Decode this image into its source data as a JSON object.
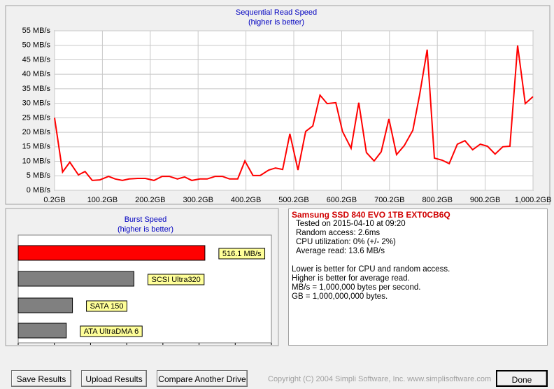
{
  "chart_data": [
    {
      "type": "line",
      "title": "Sequential Read Speed",
      "subtitle": "(higher is better)",
      "x": [
        0.2,
        17,
        32,
        50,
        64,
        79,
        95,
        113,
        127,
        142,
        156,
        174,
        190,
        208,
        225,
        240,
        257,
        272,
        287,
        304,
        319,
        336,
        351,
        366,
        383,
        398,
        415,
        430,
        448,
        462,
        477,
        492,
        509,
        525,
        540,
        555,
        570,
        588,
        602,
        620,
        636,
        652,
        668,
        683,
        699,
        715,
        731,
        749,
        763,
        779,
        794,
        810,
        825,
        842,
        858,
        874,
        890,
        905,
        921,
        937,
        952,
        968,
        984,
        1000.2
      ],
      "values": [
        25,
        6.3,
        9.7,
        5.3,
        6.5,
        3.4,
        3.6,
        4.8,
        3.9,
        3.4,
        3.9,
        4.1,
        4.1,
        3.4,
        4.8,
        4.8,
        3.9,
        4.6,
        3.4,
        3.9,
        3.9,
        4.8,
        4.8,
        3.9,
        3.9,
        10.1,
        5.1,
        5.1,
        7,
        7.7,
        7.2,
        19.5,
        7,
        20.3,
        22.2,
        32.8,
        29.9,
        30.2,
        20.3,
        14.5,
        30.2,
        13,
        10.1,
        13.3,
        24.6,
        12.3,
        15.4,
        20.7,
        32.8,
        48.5,
        11.1,
        10.4,
        9.2,
        15.9,
        17.1,
        14,
        15.9,
        15.2,
        12.5,
        15,
        15.2,
        49.9,
        29.9,
        32.3
      ],
      "color": "#ff0000",
      "xlim": [
        0.2,
        1000.2
      ],
      "xticks": [
        {
          "value": 0.2,
          "label": "0.2GB"
        },
        {
          "value": 100.2,
          "label": "100.2GB"
        },
        {
          "value": 200.2,
          "label": "200.2GB"
        },
        {
          "value": 300.2,
          "label": "300.2GB"
        },
        {
          "value": 400.2,
          "label": "400.2GB"
        },
        {
          "value": 500.2,
          "label": "500.2GB"
        },
        {
          "value": 600.2,
          "label": "600.2GB"
        },
        {
          "value": 700.2,
          "label": "700.2GB"
        },
        {
          "value": 800.2,
          "label": "800.2GB"
        },
        {
          "value": 900.2,
          "label": "900.2GB"
        },
        {
          "value": 1000.2,
          "label": "1,000.2GB"
        }
      ],
      "ylim": [
        0,
        55
      ],
      "yticks": [
        {
          "value": 0,
          "label": "0 MB/s"
        },
        {
          "value": 5,
          "label": "5 MB/s"
        },
        {
          "value": 10,
          "label": "10 MB/s"
        },
        {
          "value": 15,
          "label": "15 MB/s"
        },
        {
          "value": 20,
          "label": "20 MB/s"
        },
        {
          "value": 25,
          "label": "25 MB/s"
        },
        {
          "value": 30,
          "label": "30 MB/s"
        },
        {
          "value": 35,
          "label": "35 MB/s"
        },
        {
          "value": 40,
          "label": "40 MB/s"
        },
        {
          "value": 45,
          "label": "45 MB/s"
        },
        {
          "value": 50,
          "label": "50 MB/s"
        },
        {
          "value": 55,
          "label": "55 MB/s"
        }
      ],
      "grid": true
    },
    {
      "type": "bar",
      "orientation": "horizontal",
      "title": "Burst Speed",
      "subtitle": "(higher is better)",
      "categories": [
        null,
        "SCSI Ultra320",
        "SATA 150",
        "ATA UltraDMA 6"
      ],
      "values": [
        516.1,
        320,
        150,
        133
      ],
      "value_labels": [
        "516.1 MB/s",
        null,
        null,
        null
      ],
      "colors": [
        "#ff0000",
        "#808080",
        "#808080",
        "#808080"
      ],
      "xlim": [
        0,
        700
      ],
      "xticks": [
        0,
        100,
        200,
        300,
        400,
        500,
        600,
        700
      ]
    }
  ],
  "info": {
    "drive": "Samsung SSD 840 EVO 1TB EXT0CB6Q",
    "details": [
      "Tested on 2015-04-10 at 09:20",
      "Random access: 2.6ms",
      "CPU utilization: 0% (+/- 2%)",
      "Average read: 13.6 MB/s"
    ],
    "notes": [
      "Lower is better for CPU and random access.",
      "Higher is better for average read.",
      "MB/s = 1,000,000 bytes per second.",
      "GB = 1,000,000,000 bytes."
    ]
  },
  "buttons": [
    "Save Results",
    "Upload Results",
    "Compare Another Drive"
  ],
  "copyright": "Copyright (C) 2004 Simpli Software, Inc. www.simplisoftware.com",
  "done": "Done"
}
